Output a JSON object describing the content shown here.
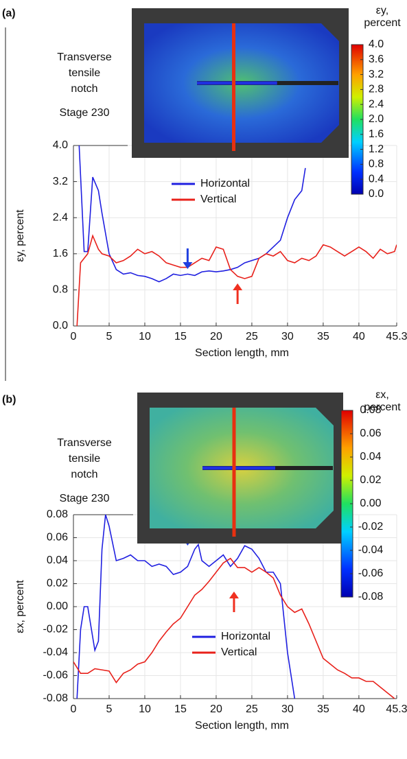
{
  "chart_data": [
    {
      "type": "line",
      "panel_label": "(a)",
      "annotations": [
        "Transverse",
        "tensile",
        "notch",
        "Stage 230"
      ],
      "xlabel": "Section length, mm",
      "ylabel": "εy, percent",
      "xlim": [
        0,
        45.3
      ],
      "xticks": [
        0,
        5,
        10,
        15,
        20,
        25,
        30,
        35,
        40,
        45.3
      ],
      "ylim": [
        0,
        4
      ],
      "yticks": [
        {
          "value": 0,
          "label": "0.0"
        },
        0.8,
        1.6,
        2.4,
        3.2,
        {
          "value": 4,
          "label": "4.0"
        }
      ],
      "grid": true,
      "colorbar": {
        "title": "εy, percent",
        "lim": [
          0,
          4
        ],
        "ticks": [
          {
            "value": 4,
            "label": "4.0"
          },
          3.6,
          3.2,
          2.8,
          2.4,
          {
            "value": 2,
            "label": "2.0"
          },
          1.6,
          1.2,
          0.8,
          0.4,
          {
            "value": 0,
            "label": "0.0"
          }
        ]
      },
      "series": [
        {
          "name": "Horizontal",
          "color": "#1f1fe0",
          "x": [
            0.8,
            1.5,
            2,
            2.7,
            3.5,
            4,
            5,
            6,
            7,
            8,
            9,
            10,
            11,
            12,
            13,
            14,
            15,
            16,
            17,
            18,
            19,
            20,
            21,
            22,
            23,
            24,
            25,
            26,
            27,
            28,
            29,
            30,
            31,
            32,
            32.5
          ],
          "values": [
            4.0,
            1.65,
            1.65,
            3.3,
            3.0,
            2.5,
            1.6,
            1.25,
            1.15,
            1.18,
            1.12,
            1.1,
            1.05,
            0.98,
            1.05,
            1.15,
            1.12,
            1.15,
            1.12,
            1.2,
            1.22,
            1.2,
            1.22,
            1.25,
            1.3,
            1.4,
            1.45,
            1.5,
            1.6,
            1.75,
            1.9,
            2.4,
            2.8,
            3.0,
            3.5
          ]
        },
        {
          "name": "Vertical",
          "color": "#e8201a",
          "x": [
            0.5,
            1,
            2,
            2.7,
            3.5,
            4,
            5,
            6,
            7,
            8,
            9,
            10,
            11,
            12,
            13,
            14,
            15,
            16,
            17,
            18,
            19,
            20,
            21,
            22,
            23,
            24,
            25,
            26,
            27,
            28,
            29,
            30,
            31,
            32,
            33,
            34,
            35,
            36,
            37,
            38,
            39,
            40,
            41,
            42,
            43,
            44,
            45,
            45.3
          ],
          "values": [
            0.0,
            1.4,
            1.6,
            2.0,
            1.7,
            1.6,
            1.55,
            1.4,
            1.45,
            1.55,
            1.7,
            1.6,
            1.65,
            1.55,
            1.4,
            1.35,
            1.3,
            1.3,
            1.4,
            1.5,
            1.45,
            1.75,
            1.7,
            1.25,
            1.1,
            1.05,
            1.1,
            1.5,
            1.6,
            1.55,
            1.65,
            1.45,
            1.4,
            1.5,
            1.45,
            1.55,
            1.8,
            1.75,
            1.65,
            1.55,
            1.65,
            1.75,
            1.65,
            1.5,
            1.7,
            1.6,
            1.65,
            1.8
          ]
        }
      ]
    },
    {
      "type": "line",
      "panel_label": "(b)",
      "annotations": [
        "Transverse",
        "tensile",
        "notch",
        "Stage 230"
      ],
      "xlabel": "Section length, mm",
      "ylabel": "εx, percent",
      "xlim": [
        0,
        45.3
      ],
      "xticks": [
        0,
        5,
        10,
        15,
        20,
        25,
        30,
        35,
        40,
        45.3
      ],
      "ylim": [
        -0.08,
        0.08
      ],
      "yticks": [
        -0.08,
        -0.06,
        -0.04,
        -0.02,
        {
          "value": 0,
          "label": "0.00"
        },
        0.02,
        0.04,
        0.06,
        0.08
      ],
      "grid": true,
      "colorbar": {
        "title": "εx, percent",
        "lim": [
          -0.08,
          0.08
        ],
        "ticks": [
          0.08,
          0.06,
          0.04,
          0.02,
          {
            "value": 0,
            "label": "0.00"
          },
          -0.02,
          -0.04,
          -0.06,
          -0.08
        ]
      },
      "series": [
        {
          "name": "Horizontal",
          "color": "#1f1fe0",
          "x": [
            0.5,
            1,
            1.5,
            2,
            3,
            3.5,
            4,
            4.5,
            5,
            6,
            7,
            8,
            9,
            10,
            11,
            12,
            13,
            14,
            15,
            16,
            17,
            17.5,
            18,
            19,
            20,
            21,
            22,
            23,
            24,
            25,
            26,
            27,
            28,
            29,
            30,
            31
          ],
          "values": [
            -0.08,
            -0.02,
            0.0,
            0.0,
            -0.038,
            -0.03,
            0.05,
            0.08,
            0.07,
            0.04,
            0.042,
            0.045,
            0.04,
            0.04,
            0.035,
            0.037,
            0.035,
            0.028,
            0.03,
            0.035,
            0.05,
            0.054,
            0.04,
            0.035,
            0.04,
            0.045,
            0.035,
            0.042,
            0.053,
            0.05,
            0.042,
            0.03,
            0.03,
            0.02,
            -0.04,
            -0.08
          ]
        },
        {
          "name": "Vertical",
          "color": "#e8201a",
          "x": [
            0,
            1,
            2,
            3,
            4,
            5,
            6,
            7,
            8,
            9,
            10,
            11,
            12,
            13,
            14,
            15,
            16,
            17,
            18,
            19,
            20,
            21,
            22,
            23,
            24,
            25,
            26,
            27,
            28,
            29,
            30,
            31,
            32,
            33,
            34,
            35,
            36,
            37,
            38,
            39,
            40,
            41,
            42,
            43,
            44,
            45
          ],
          "values": [
            -0.048,
            -0.058,
            -0.058,
            -0.054,
            -0.055,
            -0.056,
            -0.066,
            -0.058,
            -0.055,
            -0.05,
            -0.048,
            -0.04,
            -0.03,
            -0.022,
            -0.015,
            -0.01,
            0.0,
            0.01,
            0.015,
            0.022,
            0.03,
            0.038,
            0.042,
            0.034,
            0.034,
            0.03,
            0.034,
            0.03,
            0.025,
            0.01,
            0.0,
            -0.005,
            -0.002,
            -0.015,
            -0.03,
            -0.045,
            -0.05,
            -0.055,
            -0.058,
            -0.062,
            -0.062,
            -0.065,
            -0.065,
            -0.07,
            -0.075,
            -0.08
          ]
        }
      ]
    }
  ]
}
